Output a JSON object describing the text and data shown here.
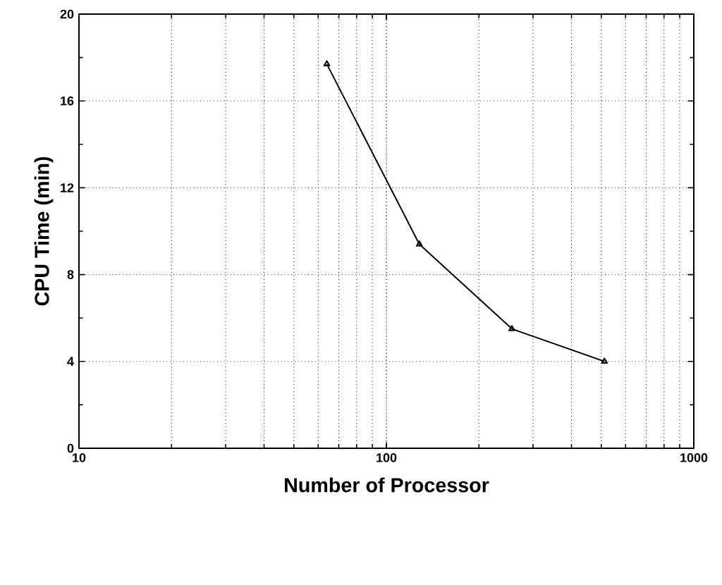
{
  "chart_data": {
    "type": "line",
    "xlabel": "Number of Processor",
    "ylabel": "CPU Time (min)",
    "x": [
      64,
      128,
      256,
      512
    ],
    "series": [
      {
        "color": "#000000",
        "values": [
          17.7,
          9.4,
          5.5,
          4.0
        ]
      }
    ],
    "xlim": [
      10,
      1000
    ],
    "xticks": [
      10,
      100,
      1000
    ],
    "ylim": [
      0,
      20
    ],
    "yticks": [
      0,
      4,
      8,
      12,
      16,
      20
    ],
    "log": "x",
    "grid": true,
    "marker": "triangle",
    "line_style": "solid"
  }
}
